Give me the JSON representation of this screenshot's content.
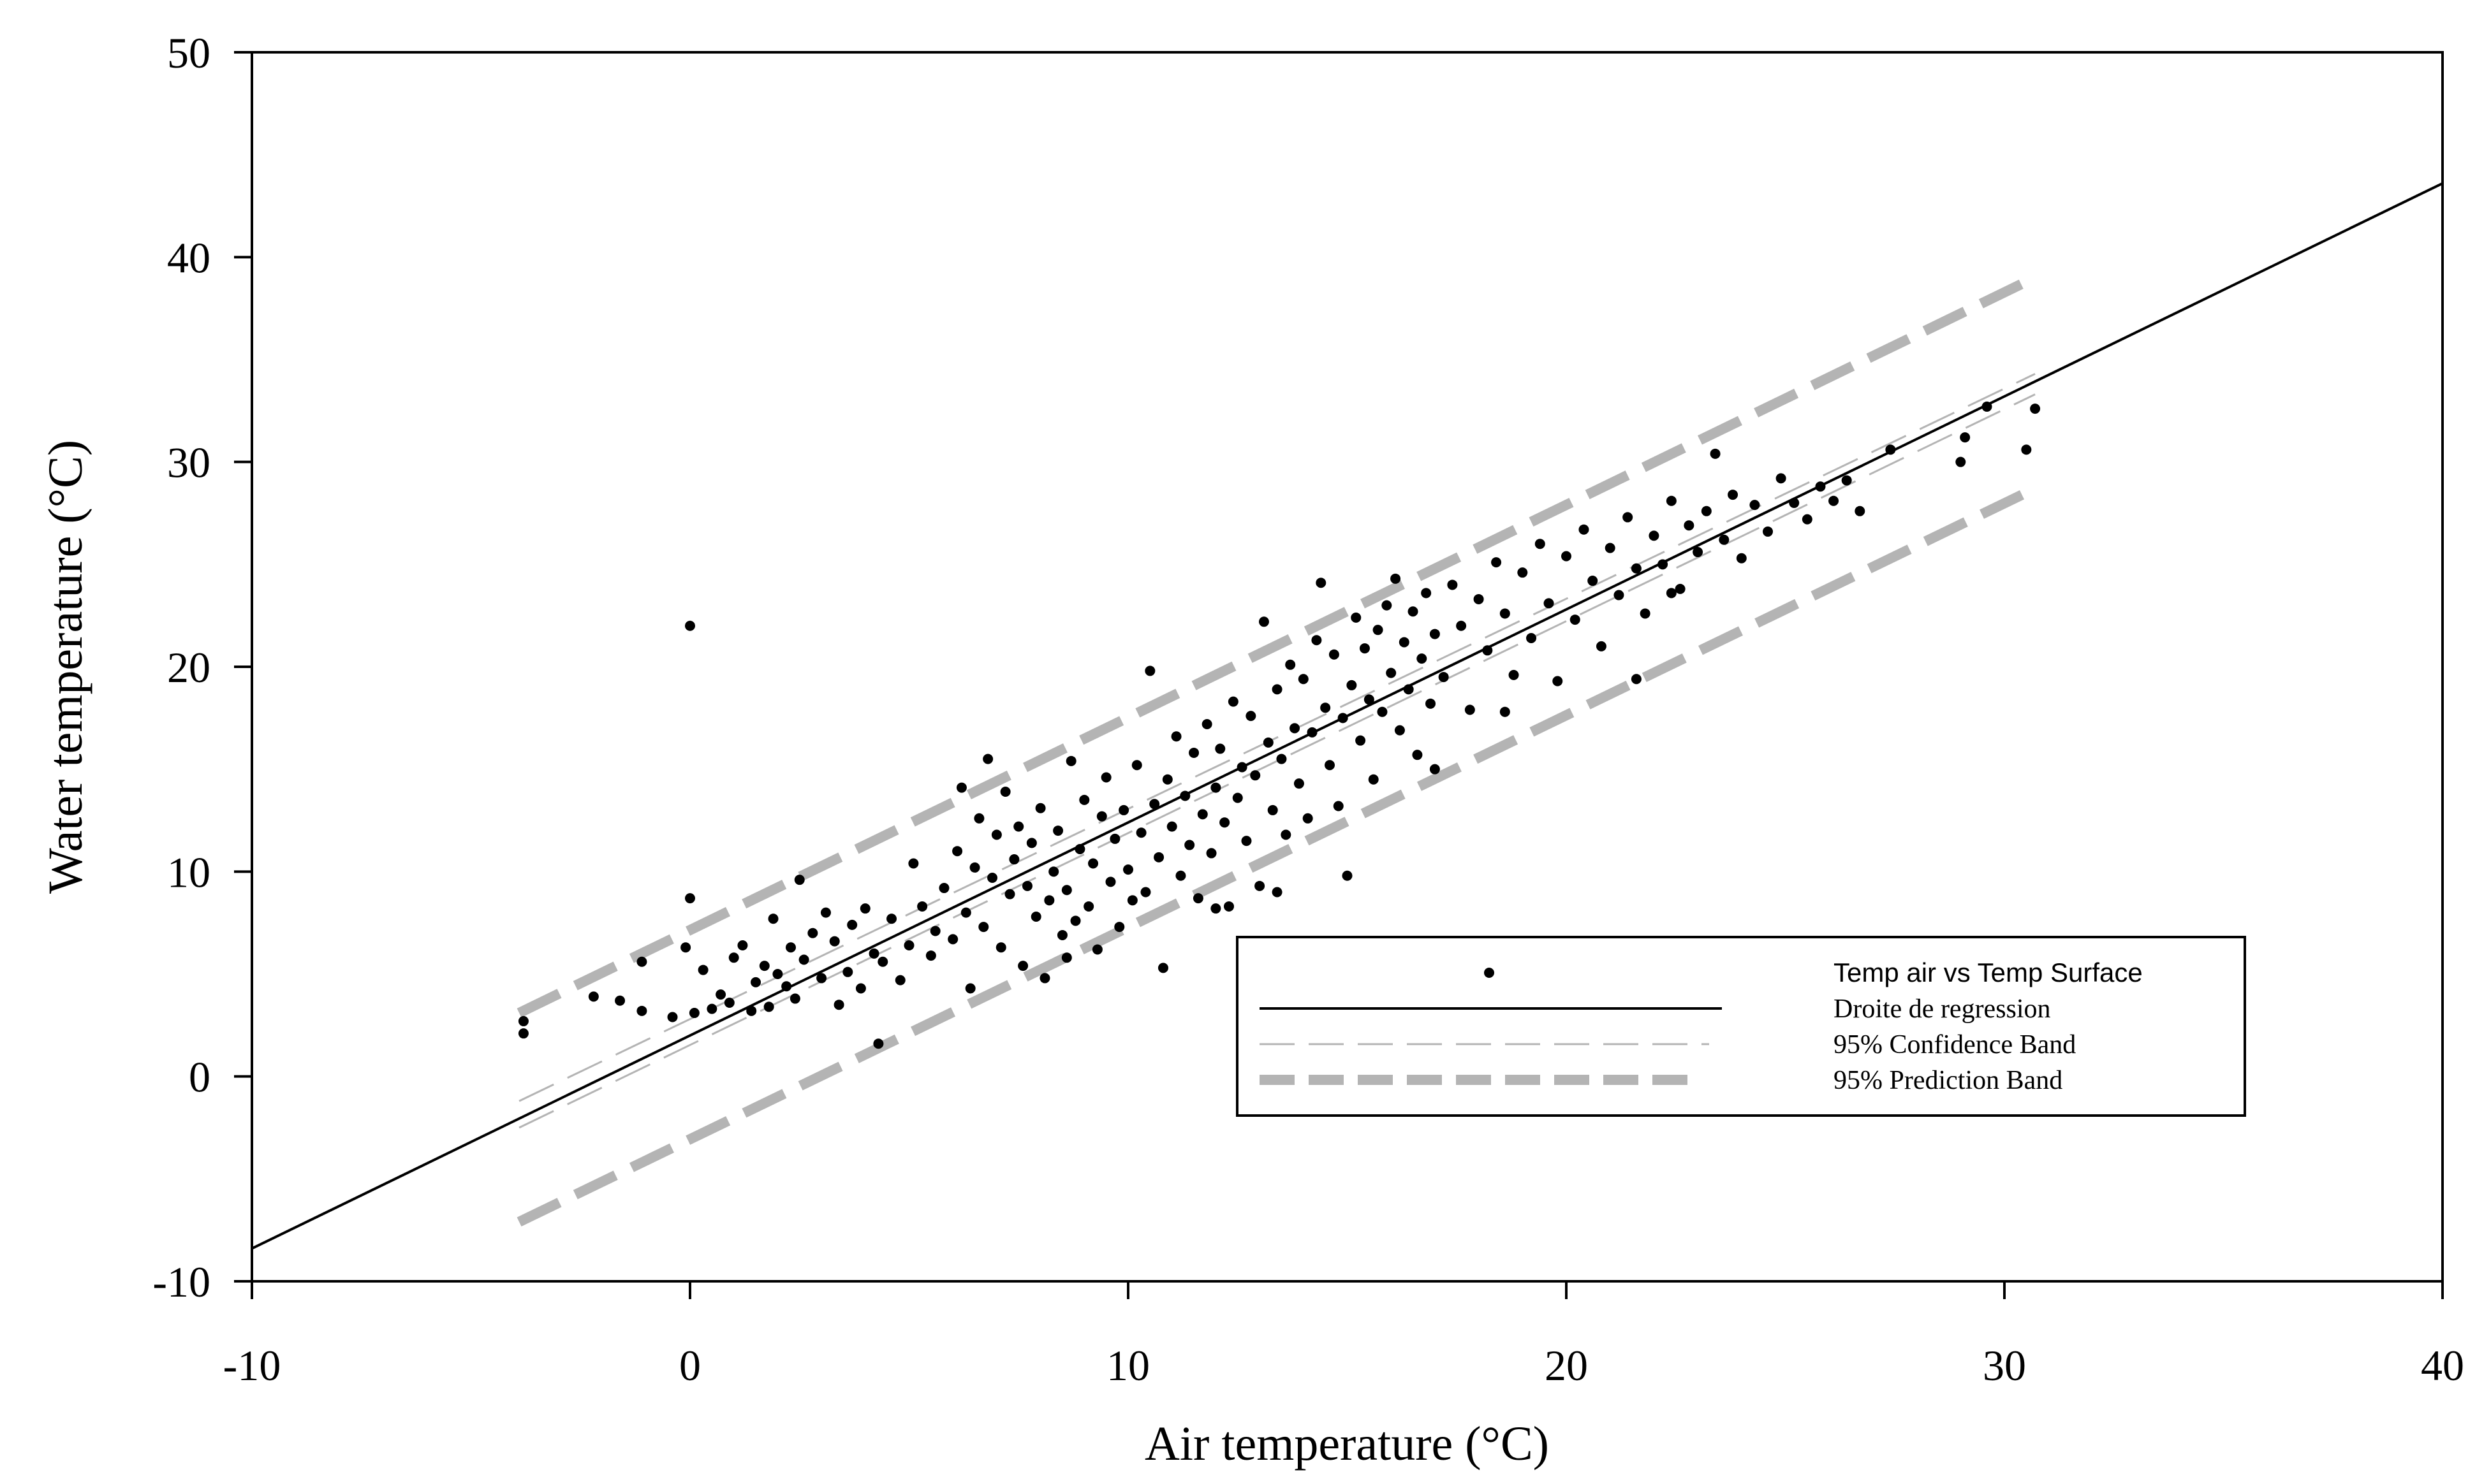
{
  "chart_data": {
    "type": "scatter",
    "title": "",
    "xlabel": "Air temperature (°C)",
    "ylabel": "Water temperature (°C)",
    "xlim": [
      -10,
      40
    ],
    "ylim": [
      -10,
      50
    ],
    "xticks": [
      -10,
      0,
      10,
      20,
      30,
      40
    ],
    "yticks": [
      -10,
      0,
      10,
      20,
      30,
      40,
      50
    ],
    "grid": false,
    "legend_position": "lower-right",
    "legend": {
      "scatter": "Temp air vs Temp Surface",
      "regression": "Droite de regression",
      "confidence": "95% Confidence Band",
      "prediction": "95% Prediction Band"
    },
    "colors": {
      "points": "#000000",
      "regression": "#000000",
      "confidence": "#b4b4b4",
      "prediction": "#b4b4b4"
    },
    "regression_line": {
      "x": [
        -10,
        40
      ],
      "y": [
        -8.4,
        43.6
      ]
    },
    "confidence_band_upper": {
      "x": [
        -3.9,
        30.7
      ],
      "y": [
        -1.2,
        34.3
      ]
    },
    "confidence_band_lower": {
      "x": [
        -3.9,
        30.7
      ],
      "y": [
        -2.5,
        33.3
      ]
    },
    "prediction_band_upper": {
      "x": [
        -3.9,
        30.5
      ],
      "y": [
        3.1,
        38.8
      ]
    },
    "prediction_band_lower": {
      "x": [
        -3.9,
        30.5
      ],
      "y": [
        -7.1,
        28.5
      ]
    },
    "series": [
      {
        "name": "Temp air vs Temp Surface",
        "points": [
          [
            -3.8,
            2.1
          ],
          [
            -3.8,
            2.7
          ],
          [
            -2.2,
            3.9
          ],
          [
            -1.6,
            3.7
          ],
          [
            -1.1,
            3.2
          ],
          [
            -1.1,
            5.6
          ],
          [
            -0.4,
            2.9
          ],
          [
            -0.1,
            6.3
          ],
          [
            0.0,
            22.0
          ],
          [
            0.0,
            8.7
          ],
          [
            0.1,
            3.1
          ],
          [
            0.3,
            5.2
          ],
          [
            0.5,
            3.3
          ],
          [
            0.7,
            4.0
          ],
          [
            0.9,
            3.6
          ],
          [
            1.0,
            5.8
          ],
          [
            1.2,
            6.4
          ],
          [
            1.4,
            3.2
          ],
          [
            1.5,
            4.6
          ],
          [
            1.7,
            5.4
          ],
          [
            1.8,
            3.4
          ],
          [
            1.9,
            7.7
          ],
          [
            2.0,
            5.0
          ],
          [
            2.2,
            4.4
          ],
          [
            2.3,
            6.3
          ],
          [
            2.4,
            3.8
          ],
          [
            2.5,
            9.6
          ],
          [
            2.6,
            5.7
          ],
          [
            2.8,
            7.0
          ],
          [
            3.0,
            4.8
          ],
          [
            3.1,
            8.0
          ],
          [
            3.3,
            6.6
          ],
          [
            3.4,
            3.5
          ],
          [
            3.6,
            5.1
          ],
          [
            3.7,
            7.4
          ],
          [
            3.9,
            4.3
          ],
          [
            4.0,
            8.2
          ],
          [
            4.2,
            6.0
          ],
          [
            4.3,
            1.6
          ],
          [
            4.4,
            5.6
          ],
          [
            4.6,
            7.7
          ],
          [
            4.8,
            4.7
          ],
          [
            5.0,
            6.4
          ],
          [
            5.1,
            10.4
          ],
          [
            5.3,
            8.3
          ],
          [
            5.5,
            5.9
          ],
          [
            5.6,
            7.1
          ],
          [
            5.8,
            9.2
          ],
          [
            6.0,
            6.7
          ],
          [
            6.1,
            11.0
          ],
          [
            6.2,
            14.1
          ],
          [
            6.3,
            8.0
          ],
          [
            6.4,
            4.3
          ],
          [
            6.5,
            10.2
          ],
          [
            6.6,
            12.6
          ],
          [
            6.7,
            7.3
          ],
          [
            6.8,
            15.5
          ],
          [
            6.9,
            9.7
          ],
          [
            7.0,
            11.8
          ],
          [
            7.1,
            6.3
          ],
          [
            7.2,
            13.9
          ],
          [
            7.3,
            8.9
          ],
          [
            7.4,
            10.6
          ],
          [
            7.5,
            12.2
          ],
          [
            7.6,
            5.4
          ],
          [
            7.7,
            9.3
          ],
          [
            7.8,
            11.4
          ],
          [
            7.9,
            7.8
          ],
          [
            8.0,
            13.1
          ],
          [
            8.1,
            4.8
          ],
          [
            8.2,
            8.6
          ],
          [
            8.3,
            10.0
          ],
          [
            8.4,
            12.0
          ],
          [
            8.5,
            6.9
          ],
          [
            8.6,
            9.1
          ],
          [
            8.7,
            15.4
          ],
          [
            8.8,
            7.6
          ],
          [
            8.9,
            11.1
          ],
          [
            9.0,
            13.5
          ],
          [
            9.1,
            8.3
          ],
          [
            9.2,
            10.4
          ],
          [
            9.3,
            6.2
          ],
          [
            9.4,
            12.7
          ],
          [
            9.5,
            14.6
          ],
          [
            9.6,
            9.5
          ],
          [
            9.7,
            11.6
          ],
          [
            9.8,
            7.3
          ],
          [
            9.9,
            13.0
          ],
          [
            10.0,
            10.1
          ],
          [
            10.1,
            8.6
          ],
          [
            10.2,
            15.2
          ],
          [
            10.3,
            11.9
          ],
          [
            10.4,
            9.0
          ],
          [
            10.5,
            19.8
          ],
          [
            10.6,
            13.3
          ],
          [
            10.7,
            10.7
          ],
          [
            10.8,
            5.3
          ],
          [
            10.9,
            14.5
          ],
          [
            11.0,
            12.2
          ],
          [
            11.1,
            16.6
          ],
          [
            11.2,
            9.8
          ],
          [
            11.3,
            13.7
          ],
          [
            11.4,
            11.3
          ],
          [
            11.5,
            15.8
          ],
          [
            11.6,
            8.7
          ],
          [
            11.7,
            12.8
          ],
          [
            11.8,
            17.2
          ],
          [
            11.9,
            10.9
          ],
          [
            12.0,
            14.1
          ],
          [
            12.1,
            16.0
          ],
          [
            12.2,
            12.4
          ],
          [
            12.3,
            8.3
          ],
          [
            12.4,
            18.3
          ],
          [
            12.5,
            13.6
          ],
          [
            12.6,
            15.1
          ],
          [
            12.7,
            11.5
          ],
          [
            12.8,
            17.6
          ],
          [
            12.9,
            14.7
          ],
          [
            13.0,
            9.3
          ],
          [
            13.1,
            22.2
          ],
          [
            13.2,
            16.3
          ],
          [
            13.3,
            13.0
          ],
          [
            13.4,
            18.9
          ],
          [
            13.5,
            15.5
          ],
          [
            13.6,
            11.8
          ],
          [
            13.7,
            20.1
          ],
          [
            13.8,
            17.0
          ],
          [
            13.9,
            14.3
          ],
          [
            14.0,
            19.4
          ],
          [
            14.1,
            12.6
          ],
          [
            14.2,
            16.8
          ],
          [
            14.3,
            21.3
          ],
          [
            14.4,
            24.1
          ],
          [
            14.5,
            18.0
          ],
          [
            14.6,
            15.2
          ],
          [
            14.7,
            20.6
          ],
          [
            14.8,
            13.2
          ],
          [
            14.9,
            17.5
          ],
          [
            15.0,
            9.8
          ],
          [
            15.1,
            19.1
          ],
          [
            15.2,
            22.4
          ],
          [
            15.3,
            16.4
          ],
          [
            15.4,
            20.9
          ],
          [
            15.5,
            18.4
          ],
          [
            15.6,
            14.5
          ],
          [
            15.7,
            21.8
          ],
          [
            15.8,
            17.8
          ],
          [
            15.9,
            23.0
          ],
          [
            16.0,
            19.7
          ],
          [
            16.1,
            24.3
          ],
          [
            16.2,
            16.9
          ],
          [
            16.3,
            21.2
          ],
          [
            16.4,
            18.9
          ],
          [
            16.5,
            22.7
          ],
          [
            16.6,
            15.7
          ],
          [
            16.7,
            20.4
          ],
          [
            16.8,
            23.6
          ],
          [
            16.9,
            18.2
          ],
          [
            17.0,
            21.6
          ],
          [
            17.2,
            19.5
          ],
          [
            17.4,
            24.0
          ],
          [
            17.6,
            22.0
          ],
          [
            17.8,
            17.9
          ],
          [
            18.0,
            23.3
          ],
          [
            18.2,
            20.8
          ],
          [
            18.4,
            25.1
          ],
          [
            18.6,
            22.6
          ],
          [
            18.8,
            19.6
          ],
          [
            19.0,
            24.6
          ],
          [
            19.2,
            21.4
          ],
          [
            19.4,
            26.0
          ],
          [
            19.6,
            23.1
          ],
          [
            19.8,
            19.3
          ],
          [
            20.0,
            25.4
          ],
          [
            20.2,
            22.3
          ],
          [
            20.4,
            26.7
          ],
          [
            20.6,
            24.2
          ],
          [
            20.8,
            21.0
          ],
          [
            21.0,
            25.8
          ],
          [
            21.2,
            23.5
          ],
          [
            21.4,
            27.3
          ],
          [
            21.6,
            24.8
          ],
          [
            21.8,
            22.6
          ],
          [
            22.0,
            26.4
          ],
          [
            22.2,
            25.0
          ],
          [
            22.4,
            28.1
          ],
          [
            22.6,
            23.8
          ],
          [
            22.8,
            26.9
          ],
          [
            23.0,
            25.6
          ],
          [
            23.2,
            27.6
          ],
          [
            23.4,
            30.4
          ],
          [
            23.6,
            26.2
          ],
          [
            23.8,
            28.4
          ],
          [
            24.0,
            25.3
          ],
          [
            24.3,
            27.9
          ],
          [
            24.6,
            26.6
          ],
          [
            24.9,
            29.2
          ],
          [
            25.2,
            28.0
          ],
          [
            25.5,
            27.2
          ],
          [
            25.8,
            28.8
          ],
          [
            26.1,
            28.1
          ],
          [
            26.4,
            29.1
          ],
          [
            26.7,
            27.6
          ],
          [
            27.4,
            30.6
          ],
          [
            29.0,
            30.0
          ],
          [
            29.1,
            31.2
          ],
          [
            29.6,
            32.7
          ],
          [
            30.5,
            30.6
          ],
          [
            30.7,
            32.6
          ],
          [
            22.4,
            23.6
          ],
          [
            18.6,
            17.8
          ],
          [
            17.0,
            15.0
          ],
          [
            21.6,
            19.4
          ],
          [
            12.0,
            8.2
          ],
          [
            13.4,
            9.0
          ],
          [
            8.6,
            5.8
          ]
        ]
      }
    ]
  }
}
